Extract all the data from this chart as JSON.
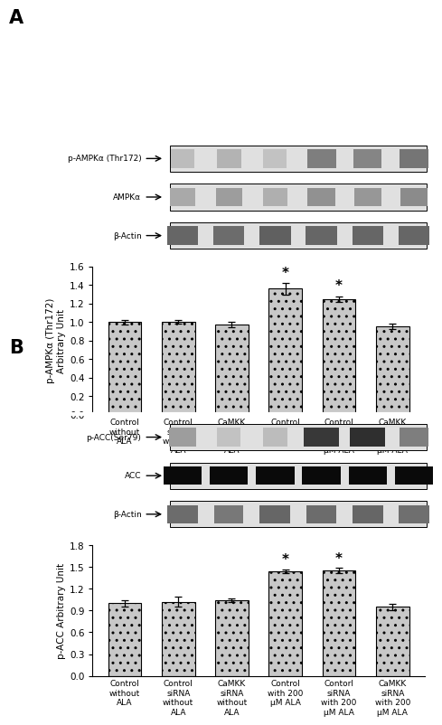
{
  "panel_A": {
    "blot_labels": [
      "p-AMPKα (Thr172)",
      "AMPKα",
      "β-Actin"
    ],
    "bar_values": [
      1.0,
      1.0,
      0.97,
      1.36,
      1.25,
      0.95
    ],
    "bar_errors": [
      0.025,
      0.02,
      0.03,
      0.06,
      0.03,
      0.03
    ],
    "ylabel": "p-AMPKα (Thr172)\nArbitrary Unit",
    "ylim": [
      0.0,
      1.6
    ],
    "yticks": [
      0.0,
      0.2,
      0.4,
      0.6,
      0.8,
      1.0,
      1.2,
      1.4,
      1.6
    ],
    "star_indices": [
      3,
      4
    ],
    "panel_label": "A",
    "blot_A_darkness": {
      "pAMPK": [
        0.22,
        0.25,
        0.2,
        0.42,
        0.4,
        0.45
      ],
      "AMPK": [
        0.28,
        0.32,
        0.26,
        0.36,
        0.34,
        0.38
      ],
      "Actin": [
        0.5,
        0.48,
        0.52,
        0.5,
        0.5,
        0.5
      ]
    }
  },
  "panel_B": {
    "blot_labels": [
      "p-ACC(Ser79)",
      "ACC",
      "β-Actin"
    ],
    "bar_values": [
      1.0,
      1.02,
      1.04,
      1.44,
      1.45,
      0.95
    ],
    "bar_errors": [
      0.04,
      0.07,
      0.025,
      0.03,
      0.035,
      0.04
    ],
    "ylabel": "p-ACC Arbitrary Unit",
    "ylim": [
      0.0,
      1.8
    ],
    "yticks": [
      0.0,
      0.3,
      0.6,
      0.9,
      1.2,
      1.5,
      1.8
    ],
    "star_indices": [
      3,
      4
    ],
    "panel_label": "B",
    "blot_B_darkness": {
      "pACC": [
        0.32,
        0.2,
        0.22,
        0.65,
        0.68,
        0.42
      ],
      "ACC": [
        0.8,
        0.8,
        0.8,
        0.8,
        0.8,
        0.8
      ],
      "Actin": [
        0.48,
        0.44,
        0.5,
        0.48,
        0.5,
        0.47
      ]
    }
  },
  "x_tick_labels_A": [
    "Control\nwithout\nALA",
    "Control\nsiRNA\nwithout\nALA",
    "CaMKK\nsiRNA\nwithout\nALA",
    "Control\nwith 200\nμM ALA",
    "Control\nsiRNA\nwith 200\nμM ALA",
    "CaMKK\nsiRNA\nwith 200\nμM ALA"
  ],
  "x_tick_labels_B": [
    "Control\nwithout\nALA",
    "Control\nsiRNA\nwithout\nALA",
    "CaMKK\nsiRNA\nwithout\nALA",
    "Control\nwith 200\nμM ALA",
    "Contorl\nsiRNA\nwith 200\nμM ALA",
    "CaMKK\nsiRNA\nwith 200\nμM ALA"
  ],
  "bar_color": "#c8c8c8",
  "bar_hatch": "..",
  "bar_edgecolor": "#000000",
  "figure_bg": "#ffffff"
}
